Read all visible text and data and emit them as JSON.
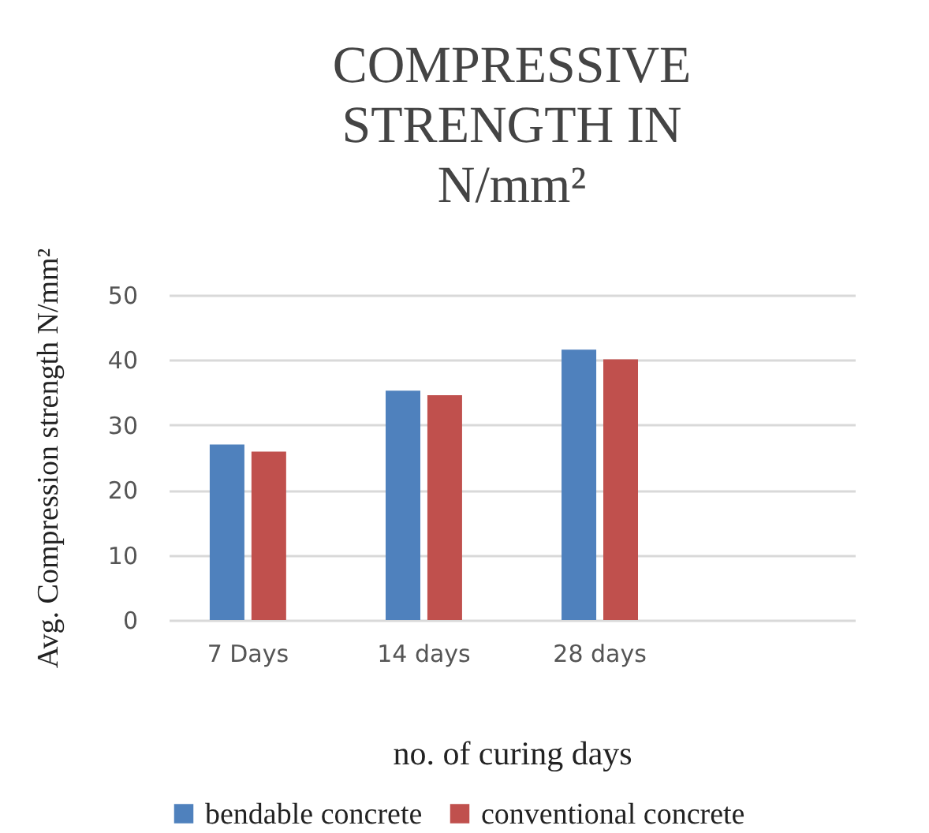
{
  "chart_data": {
    "type": "bar",
    "title": "COMPRESSIVE STRENGTH IN N/mm²",
    "xlabel": "no. of curing days",
    "ylabel": "Avg. Compression strength N/mm²",
    "categories": [
      "7 Days",
      "14 days",
      "28 days",
      null
    ],
    "series": [
      {
        "name": "bendable concrete",
        "color": "#4f81bd",
        "values": [
          27.0,
          35.3,
          41.6,
          null
        ]
      },
      {
        "name": "conventional concrete",
        "color": "#c0504d",
        "values": [
          25.9,
          34.6,
          40.1,
          null
        ]
      }
    ],
    "ylim": [
      0,
      50
    ],
    "yticks": [
      0,
      10,
      20,
      30,
      40,
      50
    ],
    "grid": "y",
    "legend": "bottom"
  }
}
